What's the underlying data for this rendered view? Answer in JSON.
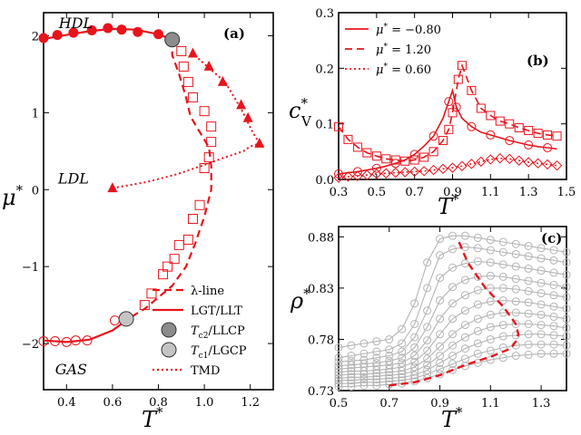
{
  "chart_data": [
    {
      "type": "scatter",
      "panel_label": "(a)",
      "title": "",
      "xlabel": "T*",
      "ylabel": "μ*",
      "xlim": [
        0.3,
        1.3
      ],
      "ylim": [
        -2.6,
        2.3
      ],
      "x_ticks": [
        0.4,
        0.6,
        0.8,
        1.0,
        1.2
      ],
      "x_tick_labels": [
        "0.4",
        "0.6",
        "0.8",
        "1.0",
        "1.2"
      ],
      "y_ticks": [
        -2,
        -1,
        0,
        1,
        2
      ],
      "y_tick_labels": [
        "−2",
        "−1",
        "0",
        "1",
        "2"
      ],
      "regions": [
        {
          "label": "HDL",
          "at": [
            0.44,
            2.1
          ]
        },
        {
          "label": "LDL",
          "at": [
            0.43,
            0.08
          ]
        },
        {
          "label": "GAS",
          "at": [
            0.42,
            -2.4
          ]
        }
      ],
      "series": [
        {
          "name": "λ-line",
          "style": "dashed",
          "color": "#e8141c",
          "x": [
            0.86,
            0.86,
            0.89,
            0.92,
            0.94,
            0.98,
            1.02,
            1.03,
            1.03,
            1.0,
            0.96,
            0.92,
            0.86,
            0.8,
            0.74,
            0.7,
            0.67
          ],
          "y": [
            1.95,
            1.75,
            1.5,
            1.2,
            0.95,
            0.75,
            0.55,
            0.3,
            0.0,
            -0.35,
            -0.7,
            -1.0,
            -1.25,
            -1.4,
            -1.55,
            -1.62,
            -1.68
          ]
        },
        {
          "name": "λ-line simulation",
          "style": "open-square",
          "color": "#e8141c",
          "x": [
            0.9,
            0.91,
            0.93,
            0.95,
            1.0,
            1.03,
            1.03,
            1.02,
            1.0,
            0.98,
            0.95,
            0.93,
            0.89,
            0.87,
            0.84,
            0.82,
            0.77,
            0.74
          ],
          "y": [
            1.8,
            1.6,
            1.4,
            1.2,
            1.02,
            0.82,
            0.62,
            0.42,
            0.28,
            -0.2,
            -0.38,
            -0.65,
            -0.72,
            -0.9,
            -1.0,
            -1.1,
            -1.35,
            -1.5
          ]
        },
        {
          "name": "LGT/LLT",
          "style": "solid",
          "color": "#e8141c",
          "x": [
            0.3,
            0.4,
            0.5,
            0.6,
            0.7,
            0.8,
            0.86
          ],
          "y": [
            1.96,
            2.01,
            2.06,
            2.09,
            2.08,
            2.02,
            1.95
          ]
        },
        {
          "name": "LGT/LLT",
          "style": "solid",
          "color": "#e8141c",
          "x": [
            0.3,
            0.4,
            0.5,
            0.6,
            0.67
          ],
          "y": [
            -1.96,
            -1.98,
            -1.95,
            -1.83,
            -1.68
          ]
        },
        {
          "name": "LLT simulation",
          "style": "filled-circle",
          "color": "#e8141c",
          "x": [
            0.3,
            0.36,
            0.43,
            0.51,
            0.58,
            0.64,
            0.71,
            0.8
          ],
          "y": [
            1.97,
            2.01,
            2.04,
            2.07,
            2.1,
            2.08,
            2.05,
            2.02
          ]
        },
        {
          "name": "LGT simulation",
          "style": "open-circle",
          "color": "#e8141c",
          "x": [
            0.3,
            0.35,
            0.4,
            0.44,
            0.49,
            0.61
          ],
          "y": [
            -1.97,
            -1.97,
            -1.98,
            -1.96,
            -1.96,
            -1.7
          ]
        },
        {
          "name": "TMD",
          "style": "dotted",
          "color": "#e8141c",
          "x": [
            0.6,
            0.75,
            0.88,
            0.99,
            1.09,
            1.17,
            1.2,
            1.24,
            1.21,
            1.16,
            1.09,
            1.02,
            0.95
          ],
          "y": [
            0.02,
            0.1,
            0.2,
            0.31,
            0.42,
            0.5,
            0.56,
            0.6,
            0.75,
            1.05,
            1.4,
            1.58,
            1.77
          ]
        },
        {
          "name": "TMD simulation",
          "style": "filled-triangle",
          "color": "#e8141c",
          "x": [
            0.6,
            1.24,
            1.19,
            1.16,
            1.08,
            1.02,
            0.95
          ],
          "y": [
            0.02,
            0.6,
            0.93,
            1.1,
            1.4,
            1.6,
            1.77
          ]
        }
      ],
      "points": [
        {
          "name": "Tc2/LLCP",
          "x": 0.86,
          "y": 1.95,
          "color": "#8c8c8c"
        },
        {
          "name": "Tc1/LGCP",
          "x": 0.66,
          "y": -1.68,
          "color": "#c4c4c4"
        }
      ],
      "legend": {
        "position": "bottom-right",
        "entries": [
          {
            "label": "λ-line",
            "style": "dashed",
            "color": "#e8141c"
          },
          {
            "label": "LGT/LLT",
            "style": "solid",
            "color": "#e8141c"
          },
          {
            "label": "Tc2/LLCP",
            "label_main": "T",
            "label_sub": "c2",
            "label_rest": "/LLCP",
            "style": "circle",
            "color": "#8c8c8c"
          },
          {
            "label": "Tc1/LGCP",
            "label_main": "T",
            "label_sub": "c1",
            "label_rest": "/LGCP",
            "style": "circle",
            "color": "#c4c4c4"
          },
          {
            "label": "TMD",
            "style": "dotted",
            "color": "#e8141c"
          }
        ]
      }
    },
    {
      "type": "line",
      "panel_label": "(b)",
      "title": "",
      "xlabel": "T*",
      "ylabel": "cV*",
      "xlim": [
        0.3,
        1.5
      ],
      "ylim": [
        0.0,
        0.3
      ],
      "x_ticks": [
        0.3,
        0.5,
        0.7,
        0.9,
        1.1,
        1.3,
        1.5
      ],
      "x_tick_labels": [
        "0.3",
        "0.5",
        "0.7",
        "0.9",
        "1.1",
        "1.3",
        "1.5"
      ],
      "y_ticks": [
        0.0,
        0.1,
        0.2,
        0.3
      ],
      "y_tick_labels": [
        "0.0",
        "0.1",
        "0.2",
        "0.3"
      ],
      "series": [
        {
          "name": "μ* = −0.80",
          "style": "solid",
          "marker": "circle",
          "color": "#e8141c",
          "x": [
            0.3,
            0.35,
            0.4,
            0.45,
            0.5,
            0.55,
            0.6,
            0.65,
            0.7,
            0.75,
            0.8,
            0.85,
            0.88,
            0.9,
            0.92,
            0.95,
            1.0,
            1.05,
            1.1,
            1.15,
            1.2,
            1.25,
            1.3,
            1.35,
            1.4,
            1.45
          ],
          "y": [
            0.01,
            0.012,
            0.014,
            0.017,
            0.02,
            0.024,
            0.029,
            0.035,
            0.045,
            0.06,
            0.078,
            0.11,
            0.14,
            0.16,
            0.13,
            0.11,
            0.095,
            0.085,
            0.08,
            0.075,
            0.07,
            0.066,
            0.062,
            0.059,
            0.057,
            0.055
          ]
        },
        {
          "name": "μ* = 1.20",
          "style": "dashed",
          "marker": "square",
          "color": "#e8141c",
          "x": [
            0.3,
            0.35,
            0.4,
            0.45,
            0.5,
            0.55,
            0.6,
            0.65,
            0.7,
            0.75,
            0.8,
            0.85,
            0.88,
            0.9,
            0.93,
            0.95,
            1.0,
            1.05,
            1.1,
            1.15,
            1.2,
            1.25,
            1.3,
            1.35,
            1.4,
            1.45
          ],
          "y": [
            0.095,
            0.072,
            0.058,
            0.048,
            0.042,
            0.037,
            0.035,
            0.033,
            0.035,
            0.04,
            0.05,
            0.07,
            0.09,
            0.12,
            0.18,
            0.205,
            0.16,
            0.128,
            0.115,
            0.105,
            0.1,
            0.093,
            0.088,
            0.083,
            0.08,
            0.078
          ]
        },
        {
          "name": "μ* = 0.60",
          "style": "dotted",
          "marker": "diamond",
          "color": "#e8141c",
          "x": [
            0.3,
            0.35,
            0.4,
            0.45,
            0.5,
            0.55,
            0.6,
            0.65,
            0.7,
            0.75,
            0.8,
            0.85,
            0.9,
            0.95,
            1.0,
            1.05,
            1.1,
            1.15,
            1.2,
            1.25,
            1.3,
            1.35,
            1.4,
            1.45
          ],
          "y": [
            0.003,
            0.005,
            0.006,
            0.008,
            0.01,
            0.011,
            0.012,
            0.013,
            0.014,
            0.015,
            0.017,
            0.019,
            0.021,
            0.024,
            0.028,
            0.032,
            0.036,
            0.038,
            0.037,
            0.034,
            0.031,
            0.029,
            0.027,
            0.025
          ]
        }
      ],
      "legend": {
        "position": "top-left",
        "entries": [
          {
            "label": "μ* = −0.80",
            "value": "−0.80",
            "style": "solid"
          },
          {
            "label": "μ* = 1.20",
            "value": "1.20",
            "style": "dashed"
          },
          {
            "label": "μ* = 0.60",
            "value": "0.60",
            "style": "dotted"
          }
        ]
      }
    },
    {
      "type": "line",
      "panel_label": "(c)",
      "title": "",
      "xlabel": "T*",
      "ylabel": "ρ*",
      "xlim": [
        0.5,
        1.4
      ],
      "ylim": [
        0.73,
        0.89
      ],
      "x_ticks": [
        0.5,
        0.7,
        0.9,
        1.1,
        1.3
      ],
      "x_tick_labels": [
        "0.5",
        "0.7",
        "0.9",
        "1.1",
        "1.3"
      ],
      "y_ticks": [
        0.73,
        0.78,
        0.83,
        0.88
      ],
      "y_tick_labels": [
        "0.73",
        "0.78",
        "0.83",
        "0.88"
      ],
      "isochores": {
        "color": "#b4b4b4",
        "marker": "open-circle",
        "x": [
          0.5,
          0.55,
          0.6,
          0.65,
          0.7,
          0.75,
          0.8,
          0.85,
          0.9,
          0.95,
          1.0,
          1.05,
          1.1,
          1.15,
          1.2,
          1.25,
          1.3,
          1.35,
          1.4
        ],
        "series": [
          {
            "name": "isochore-1",
            "y": [
              0.772,
              0.774,
              0.776,
              0.778,
              0.78,
              0.79,
              0.815,
              0.855,
              0.878,
              0.881,
              0.881,
              0.879,
              0.877,
              0.875,
              0.873,
              0.871,
              0.869,
              0.867,
              0.865
            ]
          },
          {
            "name": "isochore-2",
            "y": [
              0.762,
              0.764,
              0.766,
              0.768,
              0.77,
              0.776,
              0.795,
              0.83,
              0.862,
              0.868,
              0.87,
              0.869,
              0.867,
              0.865,
              0.863,
              0.861,
              0.859,
              0.857,
              0.855
            ]
          },
          {
            "name": "isochore-3",
            "y": [
              0.758,
              0.759,
              0.76,
              0.762,
              0.764,
              0.768,
              0.782,
              0.808,
              0.84,
              0.85,
              0.854,
              0.856,
              0.855,
              0.853,
              0.851,
              0.849,
              0.847,
              0.845,
              0.843
            ]
          },
          {
            "name": "isochore-4",
            "y": [
              0.754,
              0.755,
              0.756,
              0.757,
              0.759,
              0.762,
              0.772,
              0.792,
              0.818,
              0.831,
              0.838,
              0.841,
              0.842,
              0.841,
              0.839,
              0.837,
              0.835,
              0.833,
              0.831
            ]
          },
          {
            "name": "isochore-5",
            "y": [
              0.751,
              0.752,
              0.753,
              0.754,
              0.755,
              0.757,
              0.764,
              0.779,
              0.8,
              0.815,
              0.823,
              0.828,
              0.83,
              0.83,
              0.829,
              0.827,
              0.825,
              0.823,
              0.821
            ]
          },
          {
            "name": "isochore-6",
            "y": [
              0.748,
              0.749,
              0.749,
              0.75,
              0.751,
              0.753,
              0.758,
              0.769,
              0.785,
              0.8,
              0.808,
              0.814,
              0.817,
              0.818,
              0.817,
              0.816,
              0.814,
              0.812,
              0.81
            ]
          },
          {
            "name": "isochore-7",
            "y": [
              0.745,
              0.746,
              0.746,
              0.747,
              0.748,
              0.749,
              0.753,
              0.761,
              0.773,
              0.785,
              0.794,
              0.8,
              0.804,
              0.806,
              0.806,
              0.805,
              0.804,
              0.802,
              0.8
            ]
          },
          {
            "name": "isochore-8",
            "y": [
              0.742,
              0.743,
              0.743,
              0.744,
              0.745,
              0.746,
              0.749,
              0.755,
              0.764,
              0.774,
              0.782,
              0.788,
              0.792,
              0.794,
              0.795,
              0.795,
              0.794,
              0.793,
              0.791
            ]
          },
          {
            "name": "isochore-9",
            "y": [
              0.74,
              0.74,
              0.741,
              0.741,
              0.742,
              0.743,
              0.745,
              0.75,
              0.757,
              0.764,
              0.771,
              0.776,
              0.78,
              0.783,
              0.784,
              0.785,
              0.785,
              0.784,
              0.783
            ]
          },
          {
            "name": "isochore-10",
            "y": [
              0.737,
              0.737,
              0.738,
              0.738,
              0.739,
              0.74,
              0.742,
              0.746,
              0.751,
              0.756,
              0.761,
              0.766,
              0.769,
              0.772,
              0.774,
              0.775,
              0.775,
              0.775,
              0.774
            ]
          },
          {
            "name": "isochore-11",
            "y": [
              0.734,
              0.734,
              0.735,
              0.735,
              0.736,
              0.737,
              0.739,
              0.742,
              0.746,
              0.75,
              0.754,
              0.757,
              0.76,
              0.762,
              0.764,
              0.765,
              0.766,
              0.766,
              0.766
            ]
          }
        ]
      },
      "series": [
        {
          "name": "TMD",
          "style": "dashed",
          "color": "#e8141c",
          "x": [
            0.7,
            0.8,
            0.9,
            1.0,
            1.1,
            1.18,
            1.2,
            1.21,
            1.2,
            1.15,
            1.08,
            1.01,
            0.97
          ],
          "y": [
            0.735,
            0.738,
            0.745,
            0.755,
            0.763,
            0.771,
            0.778,
            0.785,
            0.795,
            0.812,
            0.83,
            0.855,
            0.878
          ]
        }
      ]
    }
  ]
}
